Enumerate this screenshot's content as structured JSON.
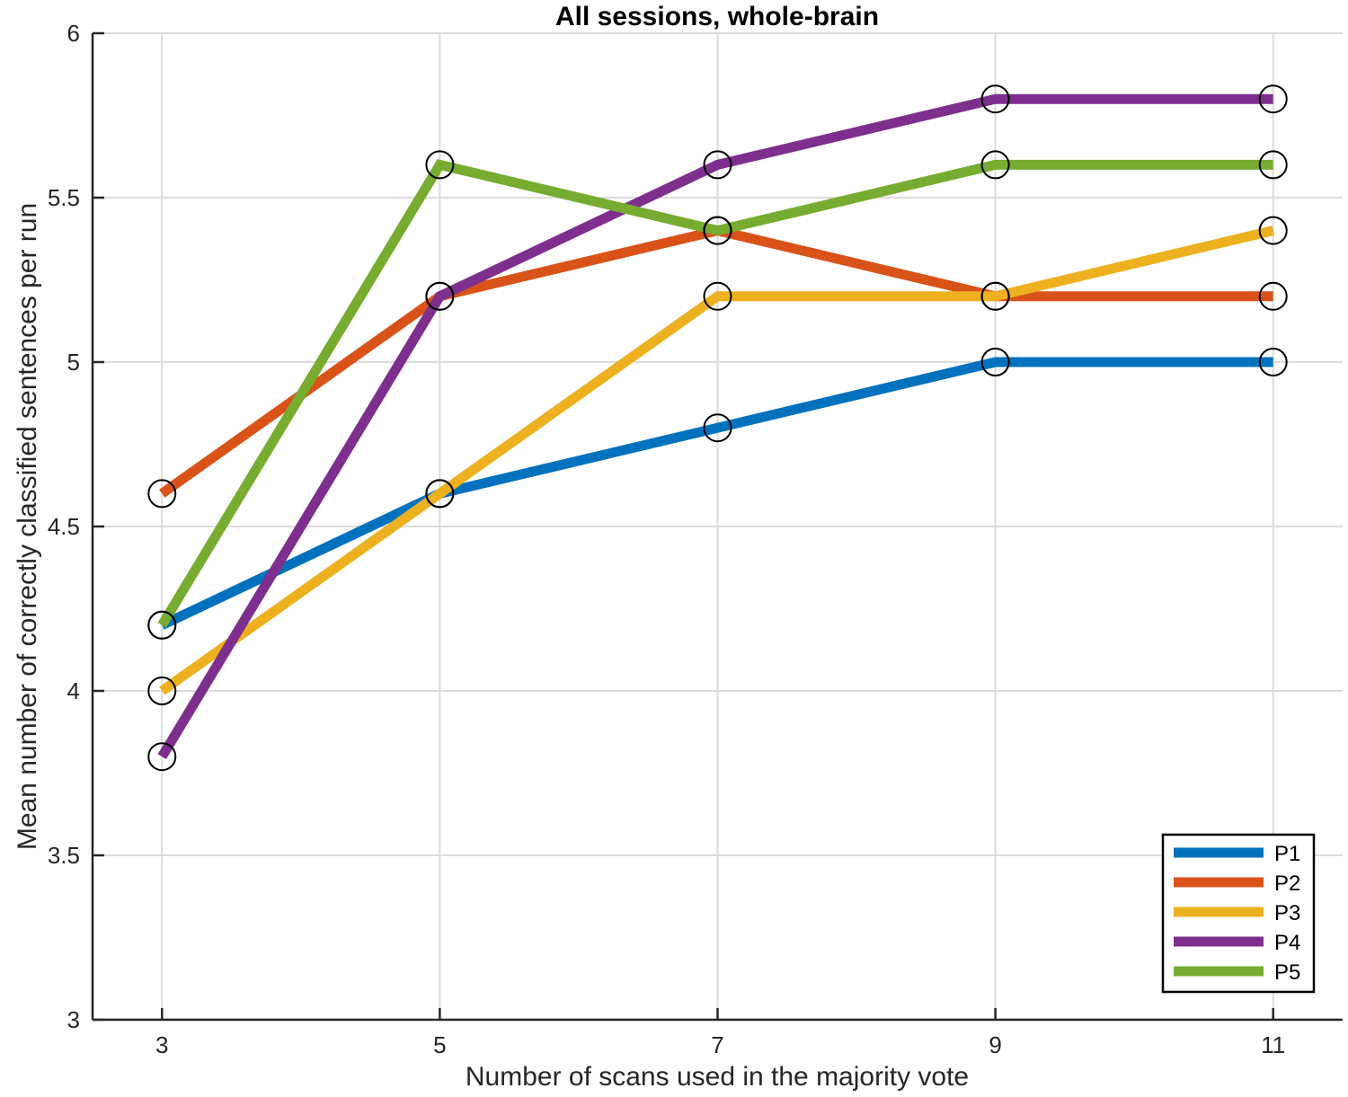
{
  "chart_data": {
    "type": "line",
    "title": "All sessions, whole-brain",
    "xlabel": "Number of scans used in the majority vote",
    "ylabel": "Mean number of correctly classified sentences per run",
    "x": [
      3,
      5,
      7,
      9,
      11
    ],
    "xticks": [
      "3",
      "5",
      "7",
      "9",
      "11"
    ],
    "yticks": [
      "3",
      "3.5",
      "4",
      "4.5",
      "5",
      "5.5",
      "6"
    ],
    "xlim": [
      2.5,
      11.5
    ],
    "ylim": [
      3,
      6
    ],
    "grid": true,
    "legend_position": "bottom-right",
    "marker": "circle",
    "series": [
      {
        "name": "P1",
        "color": "#0072bd",
        "values": [
          4.2,
          4.6,
          4.8,
          5.0,
          5.0
        ]
      },
      {
        "name": "P2",
        "color": "#d95319",
        "values": [
          4.6,
          5.2,
          5.4,
          5.2,
          5.2
        ]
      },
      {
        "name": "P3",
        "color": "#edb120",
        "values": [
          4.0,
          4.6,
          5.2,
          5.2,
          5.4
        ]
      },
      {
        "name": "P4",
        "color": "#7e2f8e",
        "values": [
          3.8,
          5.2,
          5.6,
          5.8,
          5.8
        ]
      },
      {
        "name": "P5",
        "color": "#77ac30",
        "values": [
          4.2,
          5.6,
          5.4,
          5.6,
          5.6
        ]
      }
    ]
  }
}
